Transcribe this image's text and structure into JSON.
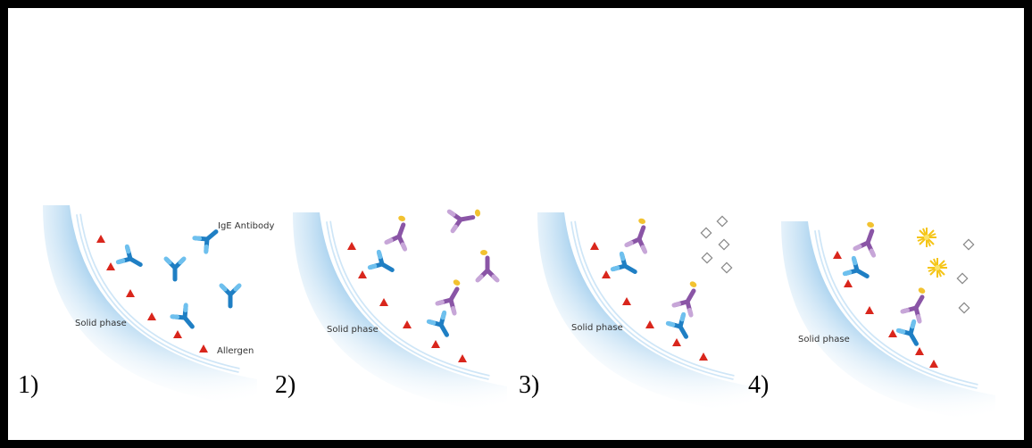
{
  "panels": [
    {
      "label": "1)",
      "solid_phase": "Solid phase",
      "antibody": "IgE Antibody",
      "allergen": "Allergen"
    },
    {
      "label": "2)",
      "solid_phase": "Solid phase"
    },
    {
      "label": "3)",
      "solid_phase": "Solid phase"
    },
    {
      "label": "4)",
      "solid_phase": "Solid phase"
    }
  ]
}
